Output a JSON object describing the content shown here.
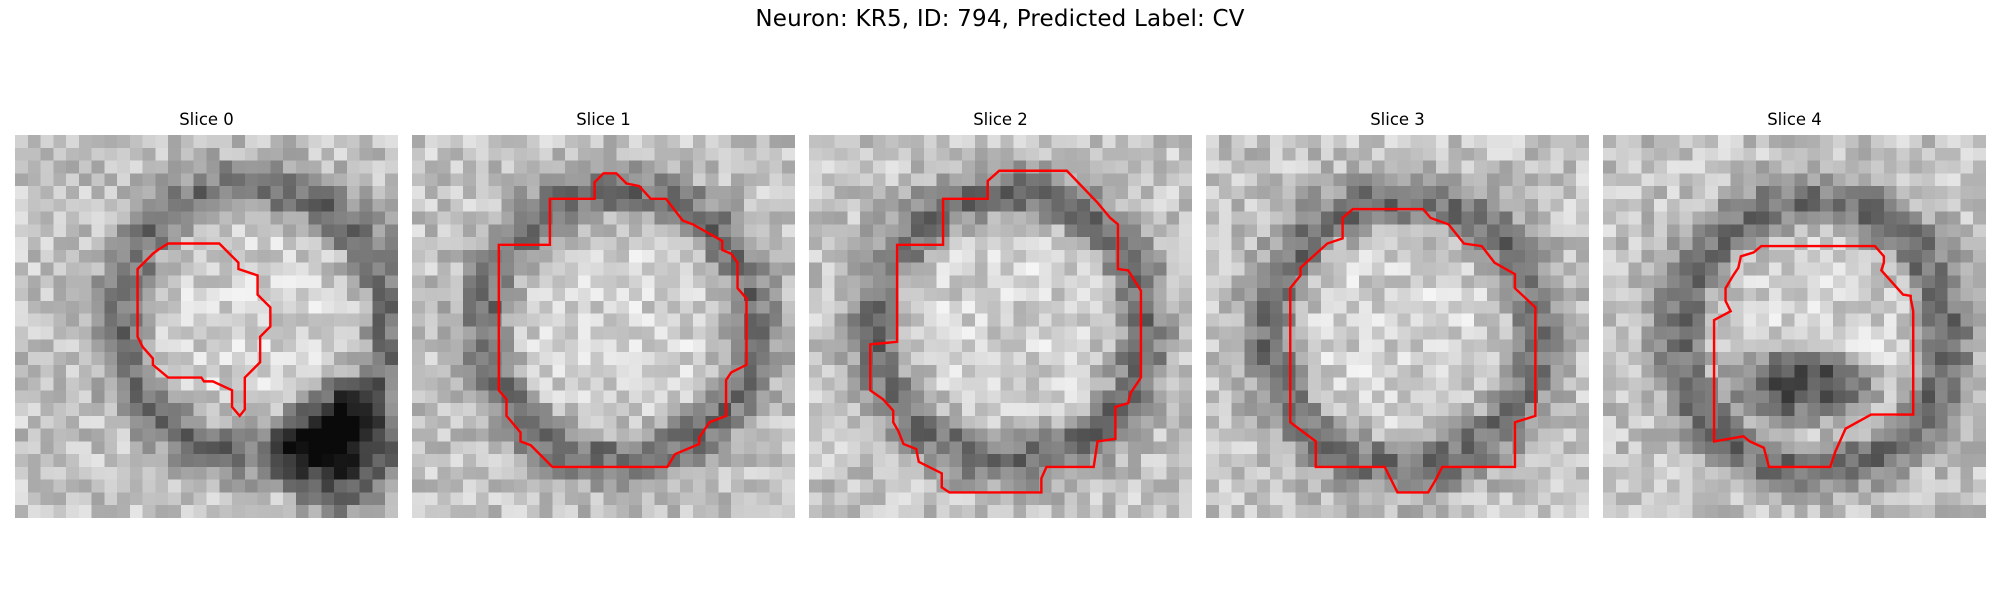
{
  "figure": {
    "title": "Neuron: KR5, ID: 794, Predicted Label: CV"
  },
  "panels": [
    {
      "title": "Slice 0",
      "center": [
        6.5,
        4.8
      ],
      "dark_blob": true
    },
    {
      "title": "Slice 1",
      "center": [
        5.5,
        5.0
      ],
      "dark_blob": false
    },
    {
      "title": "Slice 2",
      "center": [
        5.3,
        5.0
      ],
      "dark_blob": false
    },
    {
      "title": "Slice 3",
      "center": [
        5.2,
        5.2
      ],
      "dark_blob": false
    },
    {
      "title": "Slice 4",
      "center": [
        5.6,
        5.3
      ],
      "dark_blob": true
    }
  ],
  "colors": {
    "contour": "#ff0000",
    "background": "#ffffff"
  },
  "image": {
    "colormap": "gray"
  }
}
